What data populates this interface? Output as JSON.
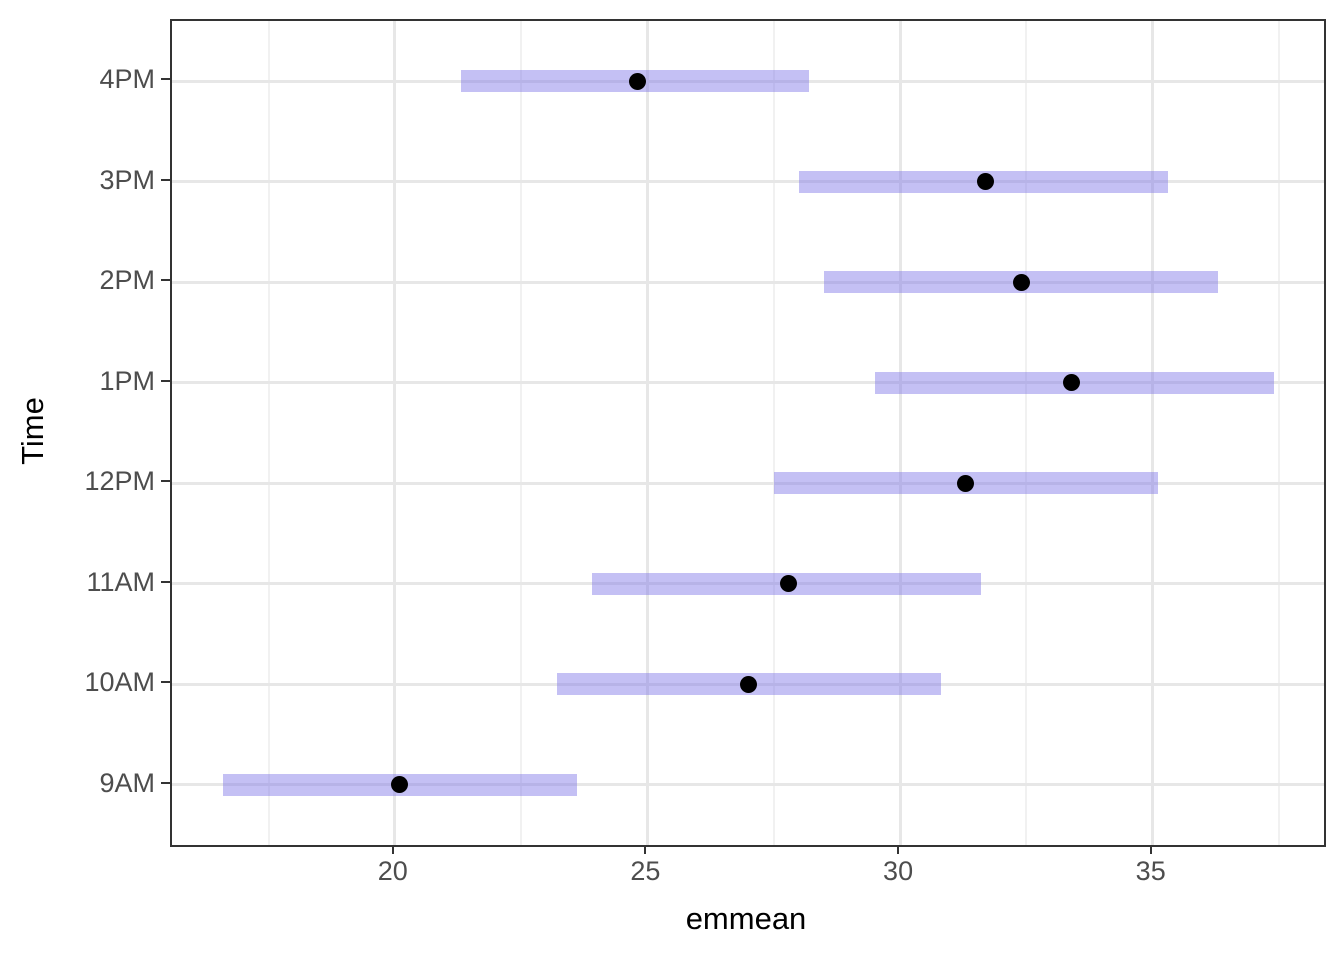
{
  "chart_data": {
    "type": "scatter",
    "subtype": "point-estimates-with-confidence-interval-bars",
    "title": "",
    "xlabel": "emmean",
    "ylabel": "Time",
    "xlim": [
      15.59,
      38.39
    ],
    "x_major_ticks": [
      20,
      25,
      30,
      35
    ],
    "x_minor_ticks": [
      17.5,
      22.5,
      27.5,
      32.5,
      37.5
    ],
    "grid": "on",
    "legend": "none",
    "categories_top_to_bottom": [
      "4PM",
      "3PM",
      "2PM",
      "1PM",
      "12PM",
      "11AM",
      "10AM",
      "9AM"
    ],
    "rows": [
      {
        "time": "4PM",
        "emmean": 24.8,
        "lower": 21.3,
        "upper": 28.2
      },
      {
        "time": "3PM",
        "emmean": 31.7,
        "lower": 28.0,
        "upper": 35.3
      },
      {
        "time": "2PM",
        "emmean": 32.4,
        "lower": 28.5,
        "upper": 36.3
      },
      {
        "time": "1PM",
        "emmean": 33.4,
        "lower": 29.5,
        "upper": 37.4
      },
      {
        "time": "12PM",
        "emmean": 31.3,
        "lower": 27.5,
        "upper": 35.1
      },
      {
        "time": "11AM",
        "emmean": 27.8,
        "lower": 23.9,
        "upper": 31.6
      },
      {
        "time": "10AM",
        "emmean": 27.0,
        "lower": 23.2,
        "upper": 30.8
      },
      {
        "time": "9AM",
        "emmean": 20.1,
        "lower": 16.6,
        "upper": 23.6
      }
    ],
    "colors": {
      "ci_fill": "#7C73E6",
      "ci_fill_alpha": 0.45,
      "point": "#000000",
      "grid_major": "#E7E7E7",
      "grid_minor": "#F1F1F1",
      "panel_border": "#333333",
      "axis_text": "#4D4D4D",
      "axis_title": "#000000",
      "background": "#FFFFFF"
    }
  }
}
